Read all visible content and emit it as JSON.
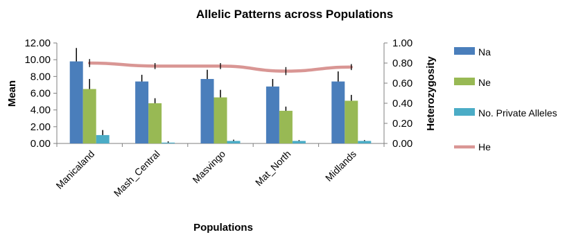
{
  "chart_data": {
    "type": "bar",
    "title": "Allelic Patterns across Populations",
    "xlabel": "Populations",
    "ylabel": "Mean",
    "y2label": "Heterozygosity",
    "ylim": [
      0,
      12
    ],
    "y2lim": [
      0,
      1
    ],
    "yticks": [
      "0.00",
      "2.00",
      "4.00",
      "6.00",
      "8.00",
      "10.00",
      "12.00"
    ],
    "y2ticks": [
      "0.00",
      "0.20",
      "0.40",
      "0.60",
      "0.80",
      "1.00"
    ],
    "categories": [
      "Manicaland",
      "Mash_Central",
      "Masvingo",
      "Mat_North",
      "Midlands"
    ],
    "series": [
      {
        "name": "Na",
        "type": "bar",
        "axis": "left",
        "color": "#4a7ebb",
        "values": [
          9.8,
          7.4,
          7.7,
          6.8,
          7.4
        ],
        "errors": [
          1.6,
          0.8,
          1.1,
          0.9,
          1.2
        ]
      },
      {
        "name": "Ne",
        "type": "bar",
        "axis": "left",
        "color": "#98b954",
        "values": [
          6.5,
          4.8,
          5.5,
          3.9,
          5.1
        ],
        "errors": [
          1.2,
          0.6,
          0.9,
          0.5,
          0.7
        ]
      },
      {
        "name": "No. Private Alleles",
        "type": "bar",
        "axis": "left",
        "color": "#4bacc6",
        "values": [
          1.0,
          0.1,
          0.3,
          0.3,
          0.3
        ],
        "errors": [
          0.6,
          0.15,
          0.15,
          0.1,
          0.1
        ]
      },
      {
        "name": "He",
        "type": "line",
        "axis": "right",
        "color": "#d99694",
        "values": [
          0.8,
          0.77,
          0.77,
          0.72,
          0.76
        ],
        "errors": [
          0.04,
          0.03,
          0.03,
          0.04,
          0.03
        ]
      }
    ],
    "legend": "right",
    "grid": false
  }
}
